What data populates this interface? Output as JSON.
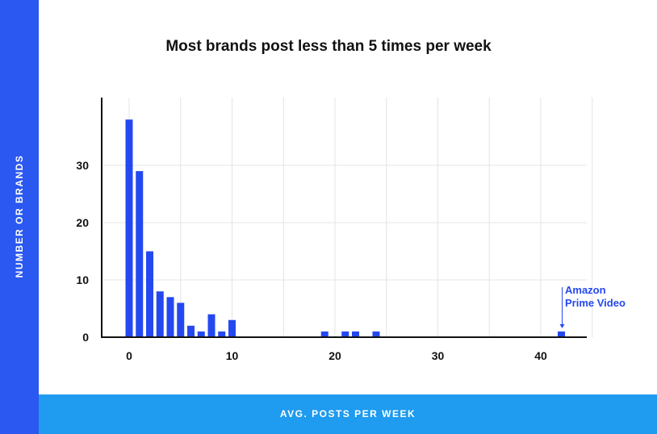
{
  "chart_data": {
    "type": "bar",
    "title": "Most brands post less than 5 times per week",
    "xlabel": "AVG. POSTS PER WEEK",
    "ylabel": "NUMBER OR BRANDS",
    "x": [
      0,
      1,
      2,
      3,
      4,
      5,
      6,
      7,
      8,
      9,
      10,
      19,
      21,
      22,
      24,
      42
    ],
    "values": [
      38,
      29,
      15,
      8,
      7,
      6,
      2,
      1,
      4,
      1,
      3,
      1,
      1,
      1,
      1,
      1
    ],
    "xlim": [
      0,
      45
    ],
    "ylim": [
      0,
      40
    ],
    "xticks": [
      0,
      10,
      20,
      30,
      40
    ],
    "yticks": [
      0,
      10,
      20,
      30
    ],
    "grid": true,
    "bar_color": "#2448f0",
    "annotation": {
      "lines": [
        "Amazon",
        "Prime Video"
      ],
      "x": 42,
      "y": 1,
      "color": "#2448f0"
    }
  }
}
